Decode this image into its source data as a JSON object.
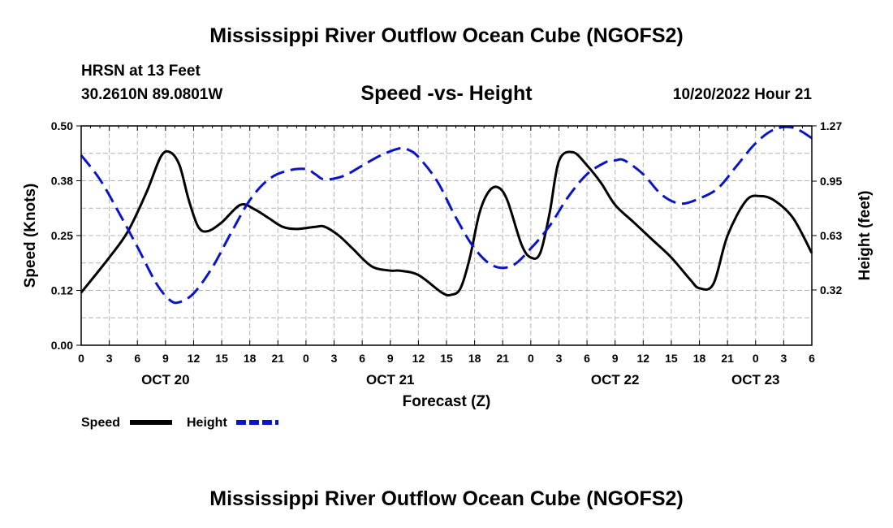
{
  "header": {
    "title": "Mississippi River Outflow Ocean Cube (NGOFS2)",
    "station": "HRSN at 13 Feet",
    "coords": "30.2610N  89.0801W",
    "subtitle": "Speed -vs- Height",
    "datestamp": "10/20/2022 Hour 21"
  },
  "footer": {
    "title": "Mississippi River Outflow Ocean Cube (NGOFS2)"
  },
  "colors": {
    "speed": "#000000",
    "height": "#0a14c8",
    "grid": "#b4b4b4"
  },
  "chart_data": {
    "type": "line",
    "title": "Speed -vs- Height",
    "xlabel": "Forecast (Z)",
    "ylabel": "Speed (Knots)",
    "y2label": "Height (feet)",
    "xlim": [
      0,
      78
    ],
    "ylim": [
      0,
      0.5
    ],
    "y2lim": [
      0,
      1.27
    ],
    "grid": true,
    "x_tick_step": 3,
    "x_tick_labels": [
      "0",
      "3",
      "6",
      "9",
      "12",
      "15",
      "18",
      "21",
      "0",
      "3",
      "6",
      "9",
      "12",
      "15",
      "18",
      "21",
      "0",
      "3",
      "6",
      "9",
      "12",
      "15",
      "18",
      "21",
      "0",
      "3",
      "6"
    ],
    "y_ticks": [
      0,
      0.125,
      0.25,
      0.375,
      0.5
    ],
    "y_tick_labels": [
      "0.00",
      "0.12",
      "0.25",
      "0.38",
      "0.50"
    ],
    "y2_ticks": [
      0.32,
      0.635,
      0.95,
      1.27
    ],
    "y2_tick_labels": [
      "0.32",
      "0.63",
      "0.95",
      "1.27"
    ],
    "day_labels": [
      {
        "x": 9,
        "label": "OCT 20"
      },
      {
        "x": 33,
        "label": "OCT 21"
      },
      {
        "x": 57,
        "label": "OCT 22"
      },
      {
        "x": 72,
        "label": "OCT 23"
      }
    ],
    "series": [
      {
        "name": "Speed",
        "axis": "left",
        "style": "solid",
        "x": [
          0,
          3,
          5,
          7,
          8.5,
          9.5,
          10.5,
          11.5,
          12.5,
          13.5,
          15,
          17,
          18.5,
          20,
          21.5,
          23,
          25,
          26,
          27.5,
          29,
          31,
          33,
          34,
          36,
          38.5,
          39.5,
          40.5,
          41.5,
          42.5,
          43.5,
          44.5,
          45.5,
          47,
          48,
          49,
          50,
          51,
          52.5,
          54,
          55.5,
          57,
          59,
          61,
          63,
          65,
          66,
          67.5,
          69,
          71,
          72.5,
          74,
          76,
          78
        ],
        "values": [
          0.12,
          0.2,
          0.26,
          0.35,
          0.43,
          0.44,
          0.41,
          0.33,
          0.27,
          0.26,
          0.28,
          0.32,
          0.31,
          0.29,
          0.27,
          0.265,
          0.27,
          0.27,
          0.25,
          0.22,
          0.18,
          0.17,
          0.17,
          0.16,
          0.12,
          0.115,
          0.13,
          0.2,
          0.3,
          0.35,
          0.36,
          0.33,
          0.23,
          0.2,
          0.21,
          0.3,
          0.42,
          0.44,
          0.41,
          0.37,
          0.32,
          0.28,
          0.24,
          0.2,
          0.15,
          0.13,
          0.14,
          0.25,
          0.33,
          0.34,
          0.33,
          0.29,
          0.21
        ]
      },
      {
        "name": "Height",
        "axis": "right",
        "style": "dashed",
        "x": [
          0,
          2,
          4,
          6,
          8,
          9.5,
          10.5,
          12,
          14,
          16,
          18,
          20,
          22,
          24,
          25,
          26,
          28,
          30,
          32,
          34,
          35,
          36,
          38,
          40,
          42,
          44,
          46,
          48,
          50,
          52,
          54,
          56,
          57,
          58,
          60,
          62,
          64,
          66,
          68,
          70,
          72,
          74,
          76,
          78
        ],
        "values": [
          1.1,
          0.96,
          0.77,
          0.57,
          0.36,
          0.26,
          0.25,
          0.3,
          0.45,
          0.65,
          0.84,
          0.96,
          1.01,
          1.02,
          0.99,
          0.96,
          0.98,
          1.04,
          1.1,
          1.14,
          1.13,
          1.09,
          0.95,
          0.74,
          0.56,
          0.46,
          0.46,
          0.56,
          0.69,
          0.86,
          0.99,
          1.06,
          1.07,
          1.07,
          0.99,
          0.87,
          0.82,
          0.85,
          0.91,
          1.04,
          1.17,
          1.25,
          1.26,
          1.2
        ]
      }
    ],
    "legend": [
      {
        "label": "Speed",
        "style": "solid"
      },
      {
        "label": "Height",
        "style": "dashed"
      }
    ]
  }
}
